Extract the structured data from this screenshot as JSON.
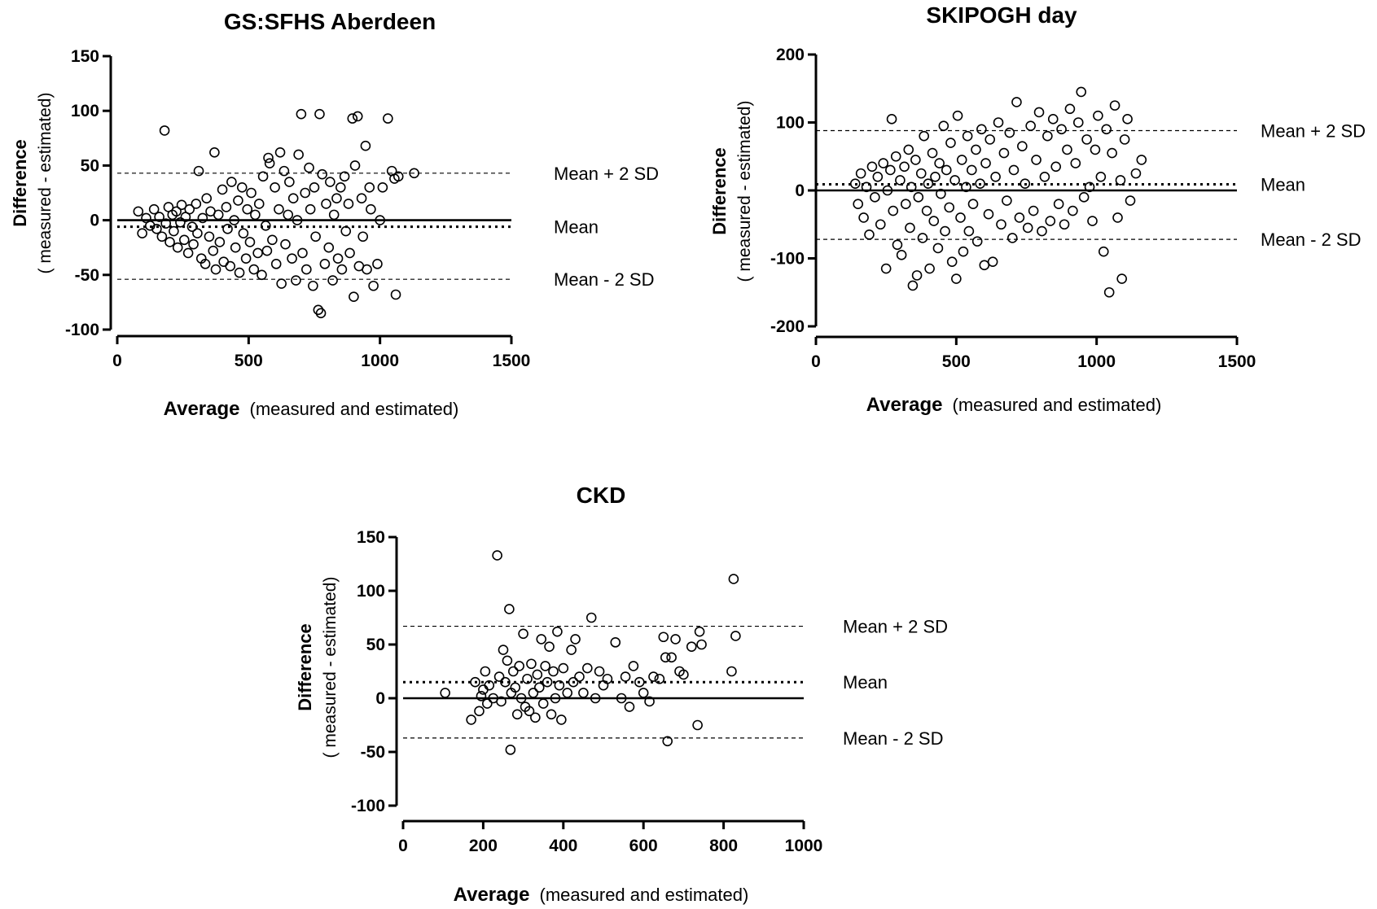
{
  "chart_data": [
    {
      "type": "scatter",
      "title": "GS:SFHS Aberdeen",
      "ylabel": "Difference",
      "ylabel_sub": "( measured - estimated)",
      "xlabel": "Average",
      "xlabel_sub": "(measured and estimated)",
      "xlim": [
        0,
        1500
      ],
      "ylim": [
        -100,
        150
      ],
      "xticks": [
        0,
        500,
        1000,
        1500
      ],
      "yticks": [
        -100,
        -50,
        0,
        50,
        100,
        150
      ],
      "reference_lines": [
        {
          "label": "Mean + 2 SD",
          "value": 43,
          "style": "dashed"
        },
        {
          "label": "Mean",
          "value": -6,
          "style": "dotted"
        },
        {
          "label": "Mean - 2 SD",
          "value": -54,
          "style": "dashed"
        }
      ],
      "zero_line": 0,
      "points": [
        [
          80,
          8
        ],
        [
          95,
          -12
        ],
        [
          110,
          2
        ],
        [
          125,
          -5
        ],
        [
          140,
          10
        ],
        [
          150,
          -8
        ],
        [
          160,
          3
        ],
        [
          170,
          -15
        ],
        [
          180,
          82
        ],
        [
          185,
          -3
        ],
        [
          195,
          12
        ],
        [
          200,
          -20
        ],
        [
          210,
          5
        ],
        [
          215,
          -10
        ],
        [
          225,
          8
        ],
        [
          230,
          -25
        ],
        [
          240,
          -2
        ],
        [
          245,
          14
        ],
        [
          255,
          -18
        ],
        [
          260,
          3
        ],
        [
          270,
          -30
        ],
        [
          275,
          10
        ],
        [
          285,
          -6
        ],
        [
          290,
          -22
        ],
        [
          300,
          15
        ],
        [
          305,
          -12
        ],
        [
          310,
          45
        ],
        [
          320,
          -35
        ],
        [
          325,
          2
        ],
        [
          335,
          -40
        ],
        [
          340,
          20
        ],
        [
          350,
          -15
        ],
        [
          355,
          8
        ],
        [
          365,
          -28
        ],
        [
          370,
          62
        ],
        [
          375,
          -45
        ],
        [
          385,
          5
        ],
        [
          390,
          -20
        ],
        [
          400,
          28
        ],
        [
          405,
          -38
        ],
        [
          415,
          12
        ],
        [
          420,
          -8
        ],
        [
          430,
          -42
        ],
        [
          435,
          35
        ],
        [
          445,
          0
        ],
        [
          450,
          -25
        ],
        [
          460,
          18
        ],
        [
          465,
          -48
        ],
        [
          475,
          30
        ],
        [
          480,
          -12
        ],
        [
          490,
          -35
        ],
        [
          495,
          10
        ],
        [
          505,
          -20
        ],
        [
          510,
          25
        ],
        [
          520,
          -45
        ],
        [
          525,
          5
        ],
        [
          535,
          -30
        ],
        [
          540,
          15
        ],
        [
          550,
          -50
        ],
        [
          555,
          40
        ],
        [
          565,
          -5
        ],
        [
          570,
          -28
        ],
        [
          575,
          57
        ],
        [
          580,
          52
        ],
        [
          590,
          -18
        ],
        [
          600,
          30
        ],
        [
          605,
          -40
        ],
        [
          615,
          10
        ],
        [
          620,
          62
        ],
        [
          625,
          -58
        ],
        [
          635,
          45
        ],
        [
          640,
          -22
        ],
        [
          650,
          5
        ],
        [
          655,
          35
        ],
        [
          665,
          -35
        ],
        [
          670,
          20
        ],
        [
          680,
          -55
        ],
        [
          685,
          0
        ],
        [
          690,
          60
        ],
        [
          700,
          97
        ],
        [
          705,
          -30
        ],
        [
          715,
          25
        ],
        [
          720,
          -45
        ],
        [
          730,
          48
        ],
        [
          735,
          10
        ],
        [
          745,
          -60
        ],
        [
          750,
          30
        ],
        [
          755,
          -15
        ],
        [
          765,
          -82
        ],
        [
          770,
          97
        ],
        [
          775,
          -85
        ],
        [
          780,
          42
        ],
        [
          790,
          -40
        ],
        [
          795,
          15
        ],
        [
          805,
          -25
        ],
        [
          810,
          35
        ],
        [
          820,
          -55
        ],
        [
          825,
          5
        ],
        [
          835,
          20
        ],
        [
          840,
          -35
        ],
        [
          850,
          30
        ],
        [
          855,
          -45
        ],
        [
          865,
          40
        ],
        [
          870,
          -10
        ],
        [
          880,
          15
        ],
        [
          885,
          -30
        ],
        [
          895,
          93
        ],
        [
          900,
          -70
        ],
        [
          905,
          50
        ],
        [
          915,
          95
        ],
        [
          920,
          -42
        ],
        [
          930,
          20
        ],
        [
          935,
          -15
        ],
        [
          945,
          68
        ],
        [
          950,
          -45
        ],
        [
          960,
          30
        ],
        [
          965,
          10
        ],
        [
          975,
          -60
        ],
        [
          990,
          -40
        ],
        [
          1000,
          0
        ],
        [
          1010,
          30
        ],
        [
          1030,
          93
        ],
        [
          1045,
          45
        ],
        [
          1055,
          38
        ],
        [
          1060,
          -68
        ],
        [
          1070,
          40
        ],
        [
          1130,
          43
        ]
      ]
    },
    {
      "type": "scatter",
      "title": "SKIPOGH day",
      "ylabel": "Difference",
      "ylabel_sub": "( measured - estimated)",
      "xlabel": "Average",
      "xlabel_sub": "(measured and estimated)",
      "xlim": [
        0,
        1500
      ],
      "ylim": [
        -200,
        200
      ],
      "xticks": [
        0,
        500,
        1000,
        1500
      ],
      "yticks": [
        -200,
        -100,
        0,
        100,
        200
      ],
      "reference_lines": [
        {
          "label": "Mean + 2 SD",
          "value": 88,
          "style": "dashed"
        },
        {
          "label": "Mean",
          "value": 9,
          "style": "dotted"
        },
        {
          "label": "Mean - 2 SD",
          "value": -72,
          "style": "dashed"
        }
      ],
      "zero_line": 0,
      "points": [
        [
          140,
          10
        ],
        [
          150,
          -20
        ],
        [
          160,
          25
        ],
        [
          170,
          -40
        ],
        [
          180,
          5
        ],
        [
          190,
          -65
        ],
        [
          200,
          35
        ],
        [
          210,
          -10
        ],
        [
          220,
          20
        ],
        [
          230,
          -50
        ],
        [
          240,
          40
        ],
        [
          250,
          -115
        ],
        [
          255,
          0
        ],
        [
          265,
          30
        ],
        [
          270,
          105
        ],
        [
          275,
          -30
        ],
        [
          285,
          50
        ],
        [
          290,
          -80
        ],
        [
          300,
          15
        ],
        [
          305,
          -95
        ],
        [
          315,
          35
        ],
        [
          320,
          -20
        ],
        [
          330,
          60
        ],
        [
          335,
          -55
        ],
        [
          340,
          5
        ],
        [
          345,
          -140
        ],
        [
          355,
          45
        ],
        [
          360,
          -125
        ],
        [
          365,
          -10
        ],
        [
          375,
          25
        ],
        [
          380,
          -70
        ],
        [
          385,
          80
        ],
        [
          395,
          -30
        ],
        [
          400,
          10
        ],
        [
          405,
          -115
        ],
        [
          415,
          55
        ],
        [
          420,
          -45
        ],
        [
          425,
          20
        ],
        [
          435,
          -85
        ],
        [
          440,
          40
        ],
        [
          445,
          -5
        ],
        [
          455,
          95
        ],
        [
          460,
          -60
        ],
        [
          465,
          30
        ],
        [
          475,
          -25
        ],
        [
          480,
          70
        ],
        [
          485,
          -105
        ],
        [
          495,
          15
        ],
        [
          500,
          -130
        ],
        [
          505,
          110
        ],
        [
          515,
          -40
        ],
        [
          520,
          45
        ],
        [
          525,
          -90
        ],
        [
          535,
          5
        ],
        [
          540,
          80
        ],
        [
          545,
          -60
        ],
        [
          555,
          30
        ],
        [
          560,
          -20
        ],
        [
          570,
          60
        ],
        [
          575,
          -75
        ],
        [
          585,
          10
        ],
        [
          590,
          90
        ],
        [
          600,
          -110
        ],
        [
          605,
          40
        ],
        [
          615,
          -35
        ],
        [
          620,
          75
        ],
        [
          630,
          -105
        ],
        [
          640,
          20
        ],
        [
          650,
          100
        ],
        [
          660,
          -50
        ],
        [
          670,
          55
        ],
        [
          680,
          -15
        ],
        [
          690,
          85
        ],
        [
          700,
          -70
        ],
        [
          705,
          30
        ],
        [
          715,
          130
        ],
        [
          725,
          -40
        ],
        [
          735,
          65
        ],
        [
          745,
          10
        ],
        [
          755,
          -55
        ],
        [
          765,
          95
        ],
        [
          775,
          -30
        ],
        [
          785,
          45
        ],
        [
          795,
          115
        ],
        [
          805,
          -60
        ],
        [
          815,
          20
        ],
        [
          825,
          80
        ],
        [
          835,
          -45
        ],
        [
          845,
          105
        ],
        [
          855,
          35
        ],
        [
          865,
          -20
        ],
        [
          875,
          90
        ],
        [
          885,
          -50
        ],
        [
          895,
          60
        ],
        [
          905,
          120
        ],
        [
          915,
          -30
        ],
        [
          925,
          40
        ],
        [
          935,
          100
        ],
        [
          945,
          145
        ],
        [
          955,
          -10
        ],
        [
          965,
          75
        ],
        [
          975,
          5
        ],
        [
          985,
          -45
        ],
        [
          995,
          60
        ],
        [
          1005,
          110
        ],
        [
          1015,
          20
        ],
        [
          1025,
          -90
        ],
        [
          1035,
          90
        ],
        [
          1045,
          -150
        ],
        [
          1055,
          55
        ],
        [
          1065,
          125
        ],
        [
          1075,
          -40
        ],
        [
          1085,
          15
        ],
        [
          1090,
          -130
        ],
        [
          1100,
          75
        ],
        [
          1110,
          105
        ],
        [
          1120,
          -15
        ],
        [
          1140,
          25
        ],
        [
          1160,
          45
        ]
      ]
    },
    {
      "type": "scatter",
      "title": "CKD",
      "ylabel": "Difference",
      "ylabel_sub": "( measured - estimated)",
      "xlabel": "Average",
      "xlabel_sub": "(measured and estimated)",
      "xlim": [
        0,
        1000
      ],
      "ylim": [
        -100,
        150
      ],
      "xticks": [
        0,
        200,
        400,
        600,
        800,
        1000
      ],
      "yticks": [
        -100,
        -50,
        0,
        50,
        100,
        150
      ],
      "reference_lines": [
        {
          "label": "Mean + 2 SD",
          "value": 67,
          "style": "dashed"
        },
        {
          "label": "Mean",
          "value": 15,
          "style": "dotted"
        },
        {
          "label": "Mean - 2 SD",
          "value": -37,
          "style": "dashed"
        }
      ],
      "zero_line": 0,
      "points": [
        [
          105,
          5
        ],
        [
          170,
          -20
        ],
        [
          180,
          15
        ],
        [
          190,
          -12
        ],
        [
          195,
          2
        ],
        [
          200,
          8
        ],
        [
          205,
          25
        ],
        [
          210,
          -5
        ],
        [
          215,
          12
        ],
        [
          225,
          0
        ],
        [
          235,
          133
        ],
        [
          240,
          20
        ],
        [
          245,
          -3
        ],
        [
          250,
          45
        ],
        [
          255,
          15
        ],
        [
          260,
          35
        ],
        [
          265,
          83
        ],
        [
          268,
          -48
        ],
        [
          270,
          5
        ],
        [
          275,
          25
        ],
        [
          280,
          10
        ],
        [
          285,
          -15
        ],
        [
          290,
          30
        ],
        [
          295,
          0
        ],
        [
          300,
          60
        ],
        [
          305,
          -8
        ],
        [
          310,
          18
        ],
        [
          315,
          -12
        ],
        [
          320,
          32
        ],
        [
          325,
          5
        ],
        [
          330,
          -18
        ],
        [
          335,
          22
        ],
        [
          340,
          10
        ],
        [
          345,
          55
        ],
        [
          350,
          -5
        ],
        [
          355,
          30
        ],
        [
          360,
          15
        ],
        [
          365,
          48
        ],
        [
          370,
          -15
        ],
        [
          375,
          25
        ],
        [
          380,
          0
        ],
        [
          385,
          62
        ],
        [
          390,
          12
        ],
        [
          395,
          -20
        ],
        [
          400,
          28
        ],
        [
          410,
          5
        ],
        [
          420,
          45
        ],
        [
          425,
          15
        ],
        [
          430,
          55
        ],
        [
          440,
          20
        ],
        [
          450,
          5
        ],
        [
          460,
          28
        ],
        [
          470,
          75
        ],
        [
          480,
          0
        ],
        [
          490,
          25
        ],
        [
          500,
          12
        ],
        [
          510,
          18
        ],
        [
          530,
          52
        ],
        [
          545,
          0
        ],
        [
          555,
          20
        ],
        [
          565,
          -8
        ],
        [
          575,
          30
        ],
        [
          590,
          15
        ],
        [
          600,
          5
        ],
        [
          615,
          -3
        ],
        [
          625,
          20
        ],
        [
          640,
          18
        ],
        [
          650,
          57
        ],
        [
          655,
          38
        ],
        [
          660,
          -40
        ],
        [
          670,
          38
        ],
        [
          680,
          55
        ],
        [
          690,
          25
        ],
        [
          700,
          22
        ],
        [
          720,
          48
        ],
        [
          735,
          -25
        ],
        [
          740,
          62
        ],
        [
          745,
          50
        ],
        [
          820,
          25
        ],
        [
          825,
          111
        ],
        [
          830,
          58
        ]
      ]
    }
  ]
}
